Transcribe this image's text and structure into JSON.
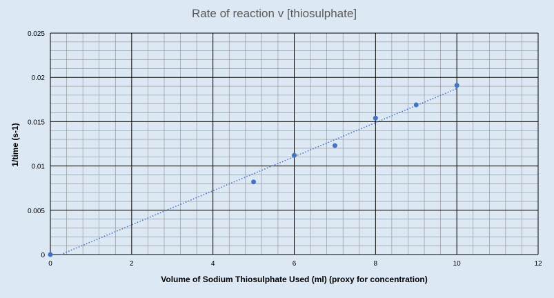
{
  "chart_data": {
    "type": "scatter",
    "title": "Rate of reaction v [thiosulphate]",
    "xlabel": "Volume of Sodium Thiosulphate Used (ml) (proxy for concentration)",
    "ylabel": "1/time (s-1)",
    "xlim": [
      0,
      12
    ],
    "ylim": [
      0,
      0.025
    ],
    "x_ticks": [
      "0",
      "2",
      "4",
      "6",
      "8",
      "10",
      "12"
    ],
    "y_ticks": [
      "0",
      "0.005",
      "0.01",
      "0.015",
      "0.02",
      "0.025"
    ],
    "grid": true,
    "legend": "none",
    "points": [
      {
        "x": 0,
        "y": 0
      },
      {
        "x": 5,
        "y": 0.0082
      },
      {
        "x": 6,
        "y": 0.0112
      },
      {
        "x": 7,
        "y": 0.0123
      },
      {
        "x": 8,
        "y": 0.0154
      },
      {
        "x": 9,
        "y": 0.0169
      },
      {
        "x": 10,
        "y": 0.0191
      }
    ],
    "trendline": {
      "type": "linear",
      "x_range": [
        0,
        10
      ]
    },
    "colors": {
      "points": "#4472c4",
      "trendline": "#4472c4",
      "major_grid": "#000000",
      "minor_grid": "#8c8c8c",
      "plot_background": "#dde8f5"
    }
  }
}
